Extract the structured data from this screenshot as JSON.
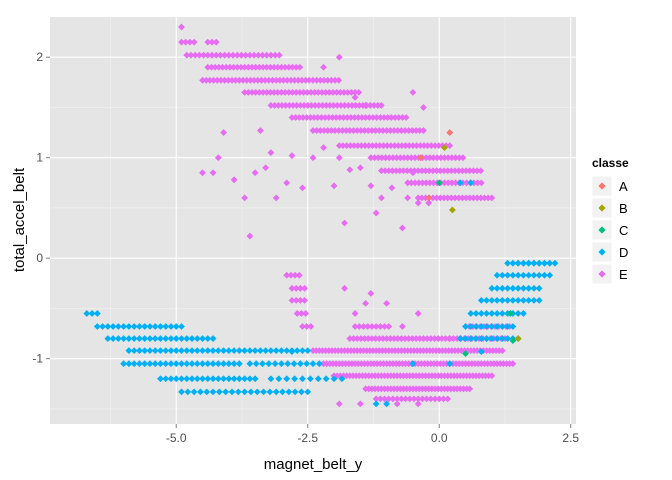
{
  "chart_data": {
    "type": "scatter",
    "xlabel": "magnet_belt_y",
    "ylabel": "total_accel_belt",
    "xlim": [
      -7.4,
      2.6
    ],
    "ylim": [
      -1.65,
      2.4
    ],
    "x_ticks": [
      -5.0,
      -2.5,
      0.0,
      2.5
    ],
    "x_tick_labels": [
      "-5.0",
      "-2.5",
      "0.0",
      "2.5"
    ],
    "y_ticks": [
      -1,
      0,
      1,
      2
    ],
    "y_tick_labels": [
      "-1",
      "0",
      "1",
      "2"
    ],
    "grid": true,
    "background": "#e5e5e5",
    "legend": {
      "title": "classe",
      "position": "right",
      "items": [
        {
          "label": "A",
          "color": "#f8766d"
        },
        {
          "label": "B",
          "color": "#a3a500"
        },
        {
          "label": "C",
          "color": "#00bf7d"
        },
        {
          "label": "D",
          "color": "#00b0f6"
        },
        {
          "label": "E",
          "color": "#e76bf3"
        }
      ]
    },
    "marker": "diamond",
    "series": [
      {
        "name": "A",
        "color": "#f8766d",
        "points": [
          [
            -0.2,
            0.6
          ],
          [
            -0.35,
            1.0
          ],
          [
            0.2,
            1.25
          ]
        ]
      },
      {
        "name": "B",
        "color": "#a3a500",
        "points": [
          [
            0.25,
            0.48
          ],
          [
            1.5,
            -0.8
          ],
          [
            0.1,
            1.1
          ]
        ]
      },
      {
        "name": "C",
        "color": "#00bf7d",
        "points": [
          [
            1.4,
            -0.82
          ],
          [
            0.5,
            -0.95
          ],
          [
            0.0,
            0.75
          ],
          [
            1.35,
            -0.55
          ]
        ]
      },
      {
        "name": "D",
        "color": "#00b0f6",
        "segments": [
          {
            "x": [
              -6.7,
              -6.5
            ],
            "y": -0.55,
            "step": 0.1
          },
          {
            "x": [
              -6.5,
              -4.9
            ],
            "y": -0.68,
            "step": 0.1
          },
          {
            "x": [
              -6.3,
              -4.3
            ],
            "y": -0.8,
            "step": 0.1
          },
          {
            "x": [
              -5.9,
              -4.0
            ],
            "y": -0.92,
            "step": 0.1
          },
          {
            "x": [
              -6.0,
              -3.8
            ],
            "y": -1.05,
            "step": 0.1
          },
          {
            "x": [
              -5.3,
              -3.5
            ],
            "y": -1.2,
            "step": 0.1
          },
          {
            "x": [
              -4.9,
              -2.5
            ],
            "y": -1.33,
            "step": 0.12
          },
          {
            "x": [
              -3.9,
              -2.5
            ],
            "y": -0.92,
            "step": 0.1
          },
          {
            "x": [
              -3.6,
              -2.2
            ],
            "y": -1.05,
            "step": 0.12
          },
          {
            "x": [
              -3.2,
              -1.8
            ],
            "y": -1.2,
            "step": 0.15
          },
          {
            "x": [
              0.4,
              1.5
            ],
            "y": -0.8,
            "step": 0.1
          },
          {
            "x": [
              0.6,
              1.6
            ],
            "y": -0.55,
            "step": 0.1
          },
          {
            "x": [
              0.8,
              1.9
            ],
            "y": -0.42,
            "step": 0.1
          },
          {
            "x": [
              1.0,
              1.9
            ],
            "y": -0.3,
            "step": 0.1
          },
          {
            "x": [
              1.1,
              2.1
            ],
            "y": -0.17,
            "step": 0.1
          },
          {
            "x": [
              1.3,
              2.2
            ],
            "y": -0.05,
            "step": 0.1
          },
          {
            "x": [
              1.5,
              2.1
            ],
            "y": -0.05,
            "step": 0.1
          },
          {
            "x": [
              0.5,
              1.4
            ],
            "y": -0.68,
            "step": 0.1
          }
        ],
        "points": [
          [
            -1.2,
            -1.45
          ],
          [
            -1.0,
            -1.45
          ],
          [
            -2.8,
            -0.93
          ],
          [
            0.4,
            0.75
          ],
          [
            0.6,
            0.75
          ],
          [
            -0.5,
            -1.05
          ],
          [
            0.2,
            -1.05
          ],
          [
            0.8,
            -0.93
          ]
        ]
      },
      {
        "name": "E",
        "color": "#e76bf3",
        "segments": [
          {
            "x": [
              -4.9,
              -4.6
            ],
            "y": 2.15,
            "step": 0.08
          },
          {
            "x": [
              -4.4,
              -4.2
            ],
            "y": 2.15,
            "step": 0.08
          },
          {
            "x": [
              -4.8,
              -3.0
            ],
            "y": 2.02,
            "step": 0.08
          },
          {
            "x": [
              -4.4,
              -2.6
            ],
            "y": 1.9,
            "step": 0.07
          },
          {
            "x": [
              -4.5,
              -1.9
            ],
            "y": 1.77,
            "step": 0.07
          },
          {
            "x": [
              -3.7,
              -1.5
            ],
            "y": 1.65,
            "step": 0.07
          },
          {
            "x": [
              -3.2,
              -1.1
            ],
            "y": 1.52,
            "step": 0.07
          },
          {
            "x": [
              -2.8,
              -0.6
            ],
            "y": 1.4,
            "step": 0.07
          },
          {
            "x": [
              -2.4,
              -0.3
            ],
            "y": 1.27,
            "step": 0.07
          },
          {
            "x": [
              -1.9,
              0.2
            ],
            "y": 1.12,
            "step": 0.07
          },
          {
            "x": [
              -1.3,
              0.5
            ],
            "y": 1.0,
            "step": 0.07
          },
          {
            "x": [
              -1.1,
              0.8
            ],
            "y": 0.87,
            "step": 0.07
          },
          {
            "x": [
              -0.6,
              0.8
            ],
            "y": 0.75,
            "step": 0.07
          },
          {
            "x": [
              -0.4,
              1.0
            ],
            "y": 0.6,
            "step": 0.07
          },
          {
            "x": [
              -2.9,
              -2.6
            ],
            "y": -0.17,
            "step": 0.08
          },
          {
            "x": [
              -2.8,
              -2.5
            ],
            "y": -0.3,
            "step": 0.08
          },
          {
            "x": [
              -2.8,
              -2.5
            ],
            "y": -0.42,
            "step": 0.08
          },
          {
            "x": [
              -2.7,
              -2.5
            ],
            "y": -0.55,
            "step": 0.08
          },
          {
            "x": [
              -2.6,
              -2.4
            ],
            "y": -0.68,
            "step": 0.08
          },
          {
            "x": [
              -1.6,
              -0.9
            ],
            "y": -0.68,
            "step": 0.08
          },
          {
            "x": [
              0.5,
              1.4
            ],
            "y": -0.68,
            "step": 0.07
          },
          {
            "x": [
              -1.7,
              0.2
            ],
            "y": -0.8,
            "step": 0.07
          },
          {
            "x": [
              0.2,
              1.3
            ],
            "y": -0.8,
            "step": 0.07
          },
          {
            "x": [
              -2.4,
              1.2
            ],
            "y": -0.92,
            "step": 0.06
          },
          {
            "x": [
              -2.2,
              1.4
            ],
            "y": -1.05,
            "step": 0.06
          },
          {
            "x": [
              -2.0,
              1.0
            ],
            "y": -1.17,
            "step": 0.06
          },
          {
            "x": [
              -1.4,
              0.6
            ],
            "y": -1.3,
            "step": 0.06
          },
          {
            "x": [
              -1.2,
              0.2
            ],
            "y": -1.4,
            "step": 0.08
          }
        ],
        "points": [
          [
            -4.9,
            2.3
          ],
          [
            -4.5,
            0.85
          ],
          [
            -4.3,
            0.85
          ],
          [
            -4.2,
            1.0
          ],
          [
            -4.1,
            1.25
          ],
          [
            -3.9,
            0.78
          ],
          [
            -3.7,
            0.6
          ],
          [
            -3.6,
            0.22
          ],
          [
            -3.5,
            0.85
          ],
          [
            -3.4,
            1.27
          ],
          [
            -3.3,
            0.9
          ],
          [
            -3.2,
            1.05
          ],
          [
            -3.1,
            0.6
          ],
          [
            -2.9,
            0.75
          ],
          [
            -2.8,
            1.02
          ],
          [
            -2.6,
            0.7
          ],
          [
            -2.4,
            1.0
          ],
          [
            -2.2,
            1.1
          ],
          [
            -2.0,
            0.72
          ],
          [
            -1.9,
            1.0
          ],
          [
            -1.8,
            0.35
          ],
          [
            -1.7,
            0.88
          ],
          [
            -1.6,
            1.6
          ],
          [
            -1.5,
            0.9
          ],
          [
            -1.3,
            0.72
          ],
          [
            -1.2,
            0.45
          ],
          [
            -1.1,
            0.6
          ],
          [
            -0.9,
            0.7
          ],
          [
            -0.7,
            0.3
          ],
          [
            -0.6,
            0.6
          ],
          [
            -0.5,
            0.85
          ],
          [
            -0.4,
            0.55
          ],
          [
            -0.2,
            0.55
          ],
          [
            -1.9,
            2.0
          ],
          [
            -2.2,
            1.9
          ],
          [
            -1.4,
            1.52
          ],
          [
            -0.5,
            1.65
          ],
          [
            -0.3,
            1.5
          ],
          [
            -1.8,
            -0.3
          ],
          [
            -1.4,
            -0.45
          ],
          [
            -1.6,
            -0.55
          ],
          [
            -1.3,
            -0.35
          ],
          [
            -1.0,
            -0.45
          ],
          [
            -0.7,
            -0.68
          ],
          [
            -0.4,
            -0.55
          ],
          [
            -1.9,
            -1.45
          ],
          [
            -1.5,
            -1.45
          ],
          [
            -0.8,
            -1.45
          ],
          [
            -0.4,
            -1.45
          ]
        ]
      }
    ]
  }
}
